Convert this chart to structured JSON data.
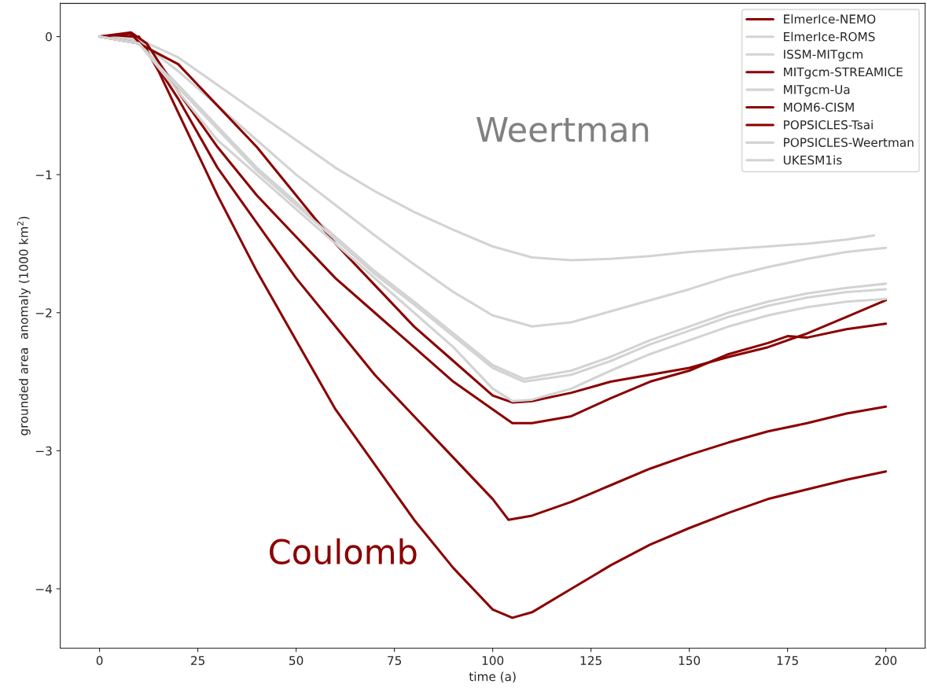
{
  "chart_data": {
    "type": "line",
    "xlabel": "time (a)",
    "ylabel": "grounded area  anomaly (1000 km$^{2}$)",
    "xlim": [
      -10,
      210
    ],
    "ylim": [
      -4.43,
      0.24
    ],
    "xticks": [
      0,
      25,
      50,
      75,
      100,
      125,
      150,
      175,
      200
    ],
    "yticks": [
      0,
      {
        "value": -1,
        "label": "−1"
      },
      {
        "value": -2,
        "label": "−2"
      },
      {
        "value": -3,
        "label": "−3"
      },
      {
        "value": -4,
        "label": "−4"
      }
    ],
    "grid": false,
    "legend": "top right",
    "line_style": "solid",
    "marker": "none",
    "annotations": [
      "Weertman",
      "Coulomb"
    ],
    "series": [
      {
        "name": "ElmerIce-NEMO",
        "color": "#8b0000",
        "x": [
          0,
          10,
          15,
          20,
          25,
          30,
          40,
          50,
          60,
          70,
          80,
          90,
          100,
          105,
          110,
          120,
          130,
          140,
          150,
          160,
          170,
          180,
          190,
          200
        ],
        "values": [
          0,
          0,
          -0.25,
          -0.55,
          -0.85,
          -1.15,
          -1.7,
          -2.2,
          -2.7,
          -3.1,
          -3.5,
          -3.85,
          -4.15,
          -4.21,
          -4.17,
          -4.0,
          -3.83,
          -3.68,
          -3.56,
          -3.45,
          -3.35,
          -3.28,
          -3.21,
          -3.15
        ]
      },
      {
        "name": "ElmerIce-ROMS",
        "color": "#d3d3d3",
        "x": [
          0,
          10,
          20,
          30,
          40,
          50,
          60,
          70,
          80,
          90,
          100,
          110,
          120,
          130,
          140,
          150,
          160,
          170,
          180,
          190,
          197
        ],
        "values": [
          0,
          -0.02,
          -0.15,
          -0.35,
          -0.55,
          -0.75,
          -0.95,
          -1.12,
          -1.27,
          -1.4,
          -1.52,
          -1.6,
          -1.62,
          -1.61,
          -1.59,
          -1.56,
          -1.54,
          -1.52,
          -1.5,
          -1.47,
          -1.44
        ]
      },
      {
        "name": "ISSM-MITgcm",
        "color": "#d3d3d3",
        "x": [
          0,
          10,
          20,
          30,
          40,
          50,
          60,
          70,
          80,
          90,
          100,
          110,
          120,
          130,
          140,
          150,
          160,
          170,
          180,
          190,
          200
        ],
        "values": [
          0,
          -0.03,
          -0.25,
          -0.5,
          -0.75,
          -1.0,
          -1.22,
          -1.44,
          -1.65,
          -1.85,
          -2.02,
          -2.1,
          -2.07,
          -1.99,
          -1.91,
          -1.83,
          -1.74,
          -1.67,
          -1.61,
          -1.56,
          -1.53
        ]
      },
      {
        "name": "MITgcm-STREAMICE",
        "color": "#8b0000",
        "x": [
          0,
          8,
          12,
          20,
          25,
          30,
          40,
          50,
          60,
          70,
          80,
          90,
          100,
          104,
          110,
          120,
          130,
          140,
          150,
          160,
          170,
          180,
          190,
          200
        ],
        "values": [
          0,
          0.02,
          -0.1,
          -0.45,
          -0.7,
          -0.95,
          -1.35,
          -1.75,
          -2.1,
          -2.45,
          -2.75,
          -3.05,
          -3.35,
          -3.5,
          -3.47,
          -3.37,
          -3.25,
          -3.13,
          -3.03,
          -2.94,
          -2.86,
          -2.8,
          -2.73,
          -2.68
        ]
      },
      {
        "name": "MITgcm-Ua",
        "color": "#d3d3d3",
        "x": [
          0,
          10,
          20,
          30,
          40,
          50,
          60,
          70,
          80,
          90,
          100,
          108,
          120,
          130,
          140,
          150,
          160,
          170,
          180,
          190,
          200
        ],
        "values": [
          0,
          -0.05,
          -0.35,
          -0.65,
          -0.95,
          -1.2,
          -1.45,
          -1.7,
          -1.92,
          -2.15,
          -2.38,
          -2.48,
          -2.42,
          -2.32,
          -2.2,
          -2.1,
          -2.0,
          -1.92,
          -1.86,
          -1.82,
          -1.79
        ]
      },
      {
        "name": "MOM6-CISM",
        "color": "#8b0000",
        "x": [
          0,
          8,
          12,
          20,
          25,
          30,
          40,
          50,
          60,
          70,
          80,
          90,
          100,
          105,
          110,
          120,
          130,
          140,
          150,
          160,
          170,
          175,
          180,
          190,
          200
        ],
        "values": [
          0,
          0.03,
          -0.05,
          -0.4,
          -0.6,
          -0.8,
          -1.15,
          -1.45,
          -1.75,
          -2.0,
          -2.25,
          -2.5,
          -2.7,
          -2.8,
          -2.8,
          -2.75,
          -2.62,
          -2.5,
          -2.42,
          -2.3,
          -2.22,
          -2.17,
          -2.18,
          -2.12,
          -2.08
        ]
      },
      {
        "name": "POPSICLES-Tsai",
        "color": "#8b0000",
        "x": [
          0,
          10,
          20,
          25,
          30,
          40,
          50,
          60,
          70,
          80,
          90,
          100,
          105,
          110,
          120,
          130,
          140,
          150,
          160,
          170,
          180,
          190,
          200
        ],
        "values": [
          0,
          -0.05,
          -0.2,
          -0.35,
          -0.5,
          -0.8,
          -1.15,
          -1.5,
          -1.8,
          -2.1,
          -2.35,
          -2.6,
          -2.65,
          -2.64,
          -2.58,
          -2.5,
          -2.45,
          -2.4,
          -2.32,
          -2.25,
          -2.15,
          -2.03,
          -1.91
        ]
      },
      {
        "name": "POPSICLES-Weertman",
        "color": "#d3d3d3",
        "x": [
          0,
          10,
          20,
          30,
          40,
          50,
          60,
          70,
          80,
          90,
          100,
          108,
          120,
          130,
          140,
          150,
          160,
          170,
          180,
          190,
          200
        ],
        "values": [
          0,
          -0.05,
          -0.37,
          -0.67,
          -0.97,
          -1.22,
          -1.47,
          -1.72,
          -1.94,
          -2.17,
          -2.4,
          -2.5,
          -2.45,
          -2.35,
          -2.23,
          -2.13,
          -2.03,
          -1.95,
          -1.89,
          -1.85,
          -1.83
        ]
      },
      {
        "name": "UKESM1is",
        "color": "#d3d3d3",
        "x": [
          0,
          10,
          20,
          30,
          40,
          50,
          60,
          70,
          80,
          90,
          100,
          105,
          110,
          120,
          130,
          140,
          150,
          160,
          170,
          180,
          190,
          200
        ],
        "values": [
          0,
          -0.05,
          -0.4,
          -0.75,
          -1.0,
          -1.25,
          -1.5,
          -1.75,
          -2.0,
          -2.25,
          -2.55,
          -2.64,
          -2.63,
          -2.55,
          -2.42,
          -2.3,
          -2.2,
          -2.1,
          -2.02,
          -1.96,
          -1.92,
          -1.9
        ]
      }
    ]
  }
}
